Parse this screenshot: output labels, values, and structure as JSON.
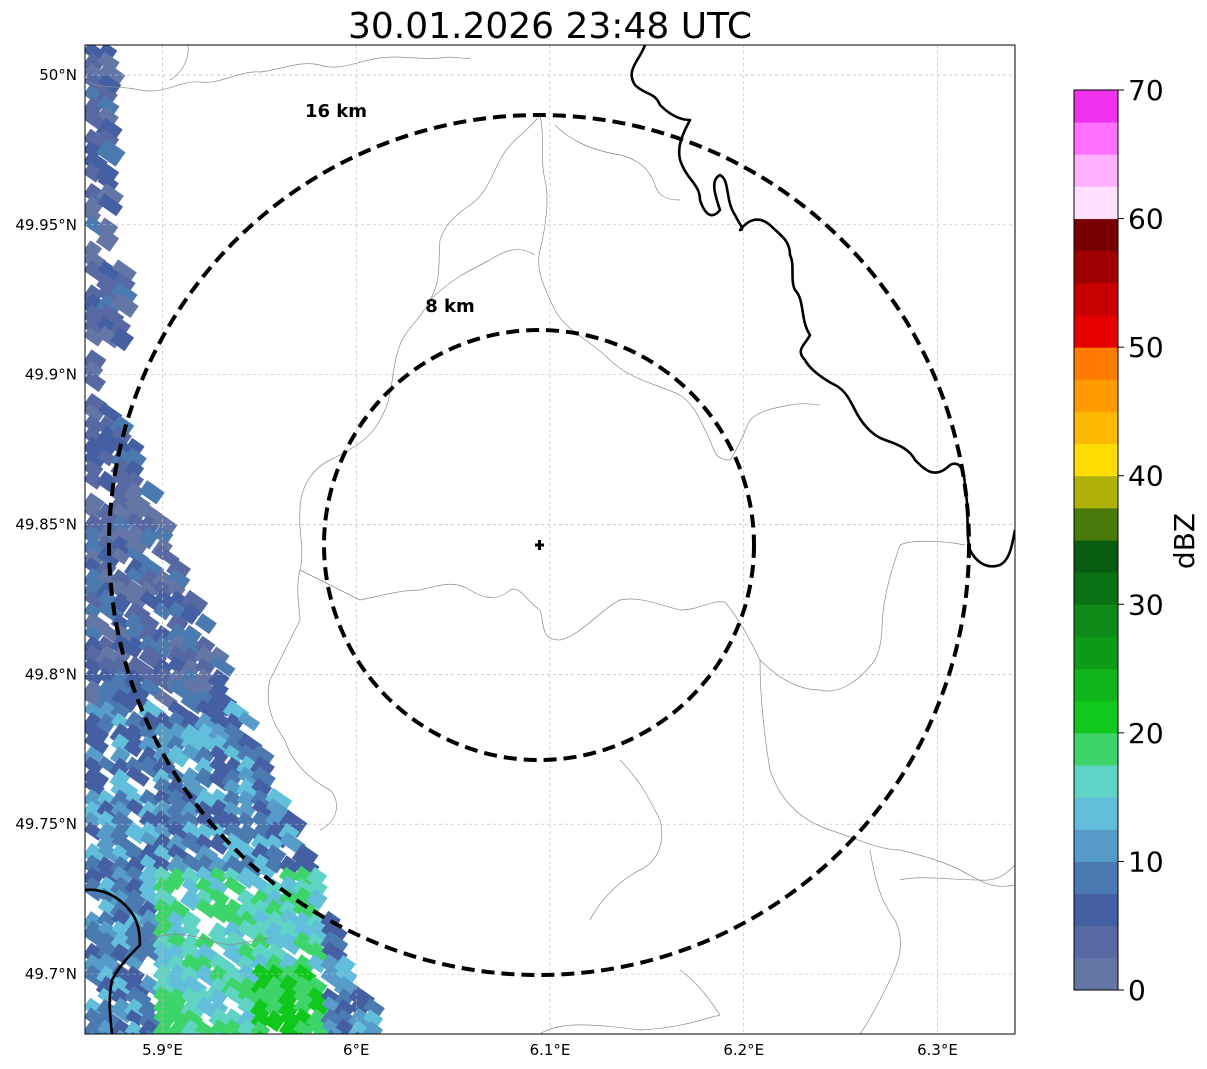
{
  "title": "30.01.2026 23:48 UTC",
  "map": {
    "lon_range": [
      5.86,
      6.34
    ],
    "lat_range": [
      49.68,
      50.01
    ],
    "lon_ticks": [
      {
        "value": 5.9,
        "label": "5.9°E"
      },
      {
        "value": 6.0,
        "label": "6°E"
      },
      {
        "value": 6.1,
        "label": "6.1°E"
      },
      {
        "value": 6.2,
        "label": "6.2°E"
      },
      {
        "value": 6.3,
        "label": "6.3°E"
      }
    ],
    "lat_ticks": [
      {
        "value": 50.0,
        "label": "50°N"
      },
      {
        "value": 49.95,
        "label": "49.95°N"
      },
      {
        "value": 49.9,
        "label": "49.9°N"
      },
      {
        "value": 49.85,
        "label": "49.85°N"
      },
      {
        "value": 49.8,
        "label": "49.8°N"
      },
      {
        "value": 49.75,
        "label": "49.75°N"
      },
      {
        "value": 49.7,
        "label": "49.7°N"
      }
    ],
    "gridlines": true,
    "radar_site": {
      "lon": 6.095,
      "lat": 49.842
    },
    "range_rings": [
      {
        "radius_km": 8,
        "label": "8 km"
      },
      {
        "radius_km": 16,
        "label": "16 km"
      }
    ]
  },
  "colorbar": {
    "label": "dBZ",
    "min": 0,
    "max": 70,
    "step": 2.5,
    "ticks": [
      {
        "value": 0,
        "label": "0"
      },
      {
        "value": 10,
        "label": "10"
      },
      {
        "value": 20,
        "label": "20"
      },
      {
        "value": 30,
        "label": "30"
      },
      {
        "value": 40,
        "label": "40"
      },
      {
        "value": 50,
        "label": "50"
      },
      {
        "value": 60,
        "label": "60"
      },
      {
        "value": 70,
        "label": "70"
      }
    ],
    "colors": [
      "#6476a6",
      "#5768a2",
      "#4560a2",
      "#4a7ab0",
      "#579cc8",
      "#62bfdb",
      "#5fd4c4",
      "#3dd46a",
      "#10c81b",
      "#10b41b",
      "#0f9b1a",
      "#0e8a18",
      "#0b7214",
      "#085e10",
      "#4a7a0a",
      "#b0b00a",
      "#ffdd00",
      "#ffb800",
      "#ff9a00",
      "#ff7a00",
      "#e60000",
      "#c80000",
      "#a00000",
      "#7a0000",
      "#ffe0ff",
      "#ffb0ff",
      "#ff70ff",
      "#f032f0"
    ]
  },
  "colors": {
    "border": "#000000",
    "admin_lines": "#9a9a9a",
    "grid": "#bbbbbb"
  }
}
